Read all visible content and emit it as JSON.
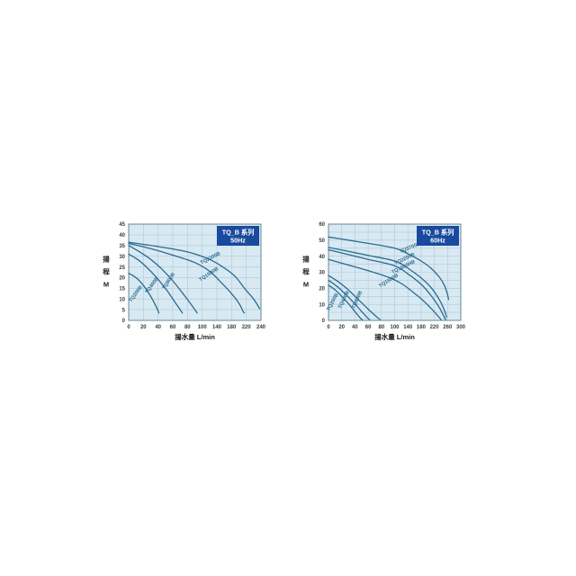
{
  "page": {
    "background": "#ffffff"
  },
  "theme": {
    "page_bg": "#ffffff",
    "plot_bg": "#d9e9f2",
    "grid_line": "#a9cadf",
    "plot_border": "#5e7f93",
    "curve_color": "#2c6b8f",
    "title_box_bg": "#1a4a9e",
    "title_box_text": "#ffffff",
    "tick_text": "#3c3c3c",
    "axis_title_text": "#1a1a1a"
  },
  "chart_data": [
    {
      "id": "tq-b-50hz",
      "type": "line",
      "title_lines": [
        "TQ_B 系列",
        "50Hz"
      ],
      "xlabel": "揚水量 L/min",
      "ylabel": "揚程 M",
      "ylabel_chars": [
        "揚",
        "程",
        "M"
      ],
      "x_ticks": [
        0,
        20,
        40,
        60,
        80,
        100,
        140,
        180,
        220,
        240
      ],
      "y_min": 0,
      "y_max": 45,
      "y_grid_step": 5,
      "y_label_step": 5,
      "legend_position": "none",
      "grid": true,
      "series": [
        {
          "name": "TQ200B",
          "label_pos": {
            "x": 11,
            "y": 12,
            "rot": -54
          },
          "points": [
            [
              0,
              22
            ],
            [
              8,
              20.5
            ],
            [
              16,
              18
            ],
            [
              24,
              14.5
            ],
            [
              32,
              10
            ],
            [
              38,
              6
            ],
            [
              41,
              3.5
            ]
          ]
        },
        {
          "name": "TQ400B",
          "label_pos": {
            "x": 33,
            "y": 16,
            "rot": -54
          },
          "points": [
            [
              0,
              31
            ],
            [
              12,
              28.5
            ],
            [
              24,
              25
            ],
            [
              38,
              20
            ],
            [
              52,
              14
            ],
            [
              64,
              8
            ],
            [
              71,
              4.5
            ],
            [
              73,
              3.5
            ]
          ]
        },
        {
          "name": "TQ800B",
          "label_pos": {
            "x": 56,
            "y": 18,
            "rot": -57
          },
          "points": [
            [
              0,
              35
            ],
            [
              15,
              32
            ],
            [
              30,
              28.5
            ],
            [
              45,
              24
            ],
            [
              60,
              18.5
            ],
            [
              75,
              12
            ],
            [
              88,
              6
            ],
            [
              93,
              3.5
            ]
          ]
        },
        {
          "name": "TQ1500B",
          "label_pos": {
            "x": 120,
            "y": 21,
            "rot": -33
          },
          "points": [
            [
              0,
              36
            ],
            [
              30,
              33.5
            ],
            [
              60,
              30.5
            ],
            [
              90,
              27
            ],
            [
              120,
              23
            ],
            [
              150,
              18
            ],
            [
              180,
              12.5
            ],
            [
              200,
              8
            ],
            [
              212,
              4
            ],
            [
              215,
              3.5
            ]
          ]
        },
        {
          "name": "TQ2200B",
          "label_pos": {
            "x": 124,
            "y": 28.5,
            "rot": -27
          },
          "points": [
            [
              0,
              36.5
            ],
            [
              40,
              34.5
            ],
            [
              80,
              32
            ],
            [
              120,
              28.5
            ],
            [
              160,
              24.5
            ],
            [
              190,
              20.5
            ],
            [
              215,
              15
            ],
            [
              230,
              10
            ],
            [
              238,
              5.5
            ]
          ]
        }
      ]
    },
    {
      "id": "tq-b-60hz",
      "type": "line",
      "title_lines": [
        "TQ_B 系列",
        "60Hz"
      ],
      "xlabel": "揚水量 L/min",
      "ylabel": "揚程 M",
      "ylabel_chars": [
        "揚",
        "程",
        "M"
      ],
      "x_ticks": [
        0,
        20,
        40,
        60,
        80,
        100,
        140,
        180,
        220,
        260,
        300
      ],
      "y_min": 0,
      "y_max": 60,
      "y_grid_step": 5,
      "y_label_step": 10,
      "legend_position": "none",
      "grid": true,
      "series": [
        {
          "name": "TQ200B",
          "label_pos": {
            "x": 8,
            "y": 11,
            "rot": -62
          },
          "points": [
            [
              0,
              22
            ],
            [
              10,
              19
            ],
            [
              20,
              15
            ],
            [
              30,
              10.5
            ],
            [
              40,
              5.5
            ],
            [
              48,
              1.5
            ],
            [
              51,
              0.5
            ]
          ]
        },
        {
          "name": "TQ400B",
          "label_pos": {
            "x": 25,
            "y": 12.5,
            "rot": -64
          },
          "points": [
            [
              0,
              25
            ],
            [
              12,
              21.5
            ],
            [
              24,
              17
            ],
            [
              36,
              12
            ],
            [
              48,
              6.5
            ],
            [
              58,
              2
            ],
            [
              62,
              0.5
            ]
          ]
        },
        {
          "name": "TQ800B",
          "label_pos": {
            "x": 45,
            "y": 12.5,
            "rot": -66
          },
          "points": [
            [
              0,
              28
            ],
            [
              15,
              24
            ],
            [
              30,
              19
            ],
            [
              45,
              13
            ],
            [
              60,
              7
            ],
            [
              72,
              2.5
            ],
            [
              78,
              0.5
            ]
          ]
        },
        {
          "name": "TQ1500B",
          "label_pos": {
            "x": 92,
            "y": 24,
            "rot": -32
          },
          "points": [
            [
              0,
              38
            ],
            [
              30,
              34.5
            ],
            [
              60,
              31
            ],
            [
              90,
              27
            ],
            [
              120,
              23
            ],
            [
              150,
              18.5
            ],
            [
              180,
              13.5
            ],
            [
              210,
              7.5
            ],
            [
              232,
              2.5
            ],
            [
              240,
              0.5
            ]
          ]
        },
        {
          "name": "TQ1500HB",
          "label_pos": {
            "x": 128,
            "y": 32.5,
            "rot": -26
          },
          "points": [
            [
              0,
              44
            ],
            [
              30,
              41
            ],
            [
              60,
              38
            ],
            [
              100,
              34
            ],
            [
              140,
              29
            ],
            [
              180,
              22.5
            ],
            [
              210,
              15.5
            ],
            [
              235,
              8
            ],
            [
              250,
              2
            ],
            [
              254,
              0.5
            ]
          ]
        },
        {
          "name": "TQ2200B",
          "label_pos": {
            "x": 132,
            "y": 37.5,
            "rot": -26
          },
          "points": [
            [
              0,
              45.5
            ],
            [
              30,
              43
            ],
            [
              60,
              40.5
            ],
            [
              100,
              37
            ],
            [
              140,
              32.5
            ],
            [
              180,
              26.5
            ],
            [
              210,
              20.5
            ],
            [
              235,
              13
            ],
            [
              250,
              6.5
            ],
            [
              257,
              2
            ]
          ]
        },
        {
          "name": "TQ3700B",
          "label_pos": {
            "x": 148,
            "y": 44.5,
            "rot": -22
          },
          "points": [
            [
              0,
              52
            ],
            [
              30,
              50
            ],
            [
              60,
              48
            ],
            [
              100,
              45
            ],
            [
              140,
              41.5
            ],
            [
              180,
              37
            ],
            [
              210,
              32.5
            ],
            [
              235,
              27
            ],
            [
              250,
              22
            ],
            [
              260,
              16
            ],
            [
              263,
              13
            ]
          ]
        }
      ]
    }
  ]
}
